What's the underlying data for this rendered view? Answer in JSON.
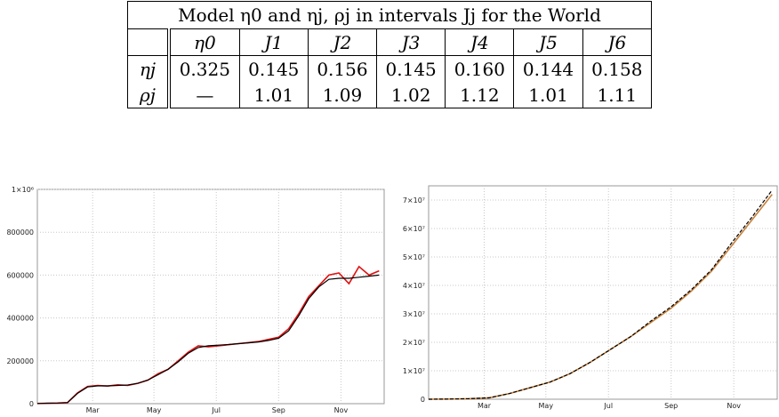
{
  "table": {
    "caption": "Model η0 and ηj, ρj in intervals Jj for the World",
    "header": [
      "",
      "η0",
      "J1",
      "J2",
      "J3",
      "J4",
      "J5",
      "J6"
    ],
    "eta_label": "ηj",
    "rho_label": "ρj",
    "eta": [
      "0.325",
      "0.145",
      "0.156",
      "0.145",
      "0.160",
      "0.144",
      "0.158"
    ],
    "rho": [
      "—",
      "1.01",
      "1.09",
      "1.02",
      "1.12",
      "1.01",
      "1.11"
    ]
  },
  "chart_data": [
    {
      "type": "line",
      "title": "",
      "xlabel": "",
      "ylabel": "",
      "x_ticks": [
        "Mar",
        "May",
        "Jul",
        "Sep",
        "Nov"
      ],
      "y_ticks": [
        "0",
        "200000",
        "400000",
        "600000",
        "800000",
        "1×10⁶"
      ],
      "ylim": [
        0,
        1000000
      ],
      "grid": true,
      "series": [
        {
          "color": "#e01010",
          "x": [
            0,
            10,
            20,
            30,
            40,
            50,
            60,
            70,
            80,
            90,
            100,
            110,
            120,
            130,
            140,
            150,
            160,
            170,
            180,
            190,
            200,
            210,
            220,
            230,
            240,
            250,
            260,
            270,
            280,
            290,
            300,
            310,
            320,
            330,
            340
          ],
          "values": [
            1000,
            2000,
            3000,
            5000,
            50000,
            80000,
            85000,
            82000,
            88000,
            85000,
            95000,
            110000,
            140000,
            160000,
            200000,
            240000,
            270000,
            265000,
            270000,
            275000,
            280000,
            285000,
            290000,
            300000,
            310000,
            350000,
            420000,
            500000,
            550000,
            600000,
            610000,
            560000,
            640000,
            600000,
            620000
          ]
        },
        {
          "color": "#000000",
          "x": [
            0,
            10,
            20,
            30,
            40,
            50,
            60,
            70,
            80,
            90,
            100,
            110,
            120,
            130,
            140,
            150,
            160,
            170,
            180,
            190,
            200,
            210,
            220,
            230,
            240,
            250,
            260,
            270,
            280,
            290,
            300,
            310,
            320,
            330,
            340
          ],
          "values": [
            1000,
            2000,
            3000,
            5000,
            48000,
            78000,
            83000,
            83000,
            85000,
            87000,
            95000,
            110000,
            135000,
            160000,
            195000,
            235000,
            262000,
            270000,
            273000,
            276000,
            280000,
            284000,
            288000,
            295000,
            305000,
            340000,
            410000,
            490000,
            545000,
            580000,
            585000,
            585000,
            590000,
            595000,
            600000
          ]
        }
      ]
    },
    {
      "type": "line",
      "title": "",
      "xlabel": "",
      "ylabel": "",
      "x_ticks": [
        "Mar",
        "May",
        "Jul",
        "Sep",
        "Nov"
      ],
      "y_ticks": [
        "0",
        "1×10⁷",
        "2×10⁷",
        "3×10⁷",
        "4×10⁷",
        "5×10⁷",
        "6×10⁷",
        "7×10⁷"
      ],
      "ylim": [
        0,
        75000000
      ],
      "grid": true,
      "series": [
        {
          "color": "#c8813a",
          "x": [
            0,
            20,
            40,
            60,
            80,
            100,
            120,
            140,
            160,
            180,
            200,
            220,
            240,
            260,
            280,
            300,
            320,
            340
          ],
          "values": [
            0,
            50000,
            200000,
            500000,
            2000000,
            4000000,
            6000000,
            9000000,
            13000000,
            17500000,
            22000000,
            27000000,
            32000000,
            38000000,
            45000000,
            54000000,
            63000000,
            72000000
          ]
        },
        {
          "color": "#000000",
          "x": [
            0,
            20,
            40,
            60,
            80,
            100,
            120,
            140,
            160,
            180,
            200,
            220,
            240,
            260,
            280,
            300,
            320,
            340
          ],
          "values": [
            0,
            50000,
            200000,
            500000,
            2000000,
            4000000,
            6000000,
            9000000,
            13000000,
            17500000,
            22000000,
            27500000,
            32500000,
            38500000,
            45500000,
            55000000,
            64000000,
            73500000
          ]
        }
      ]
    }
  ]
}
